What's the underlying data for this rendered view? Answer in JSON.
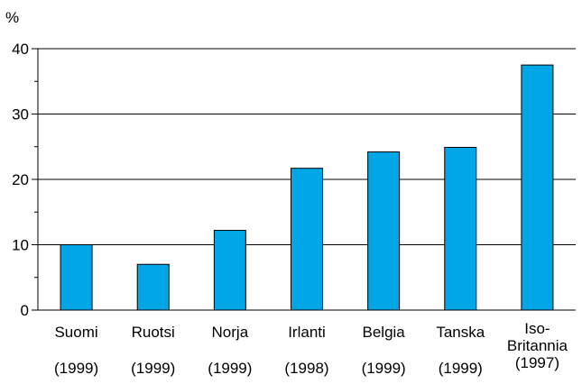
{
  "chart_data": {
    "type": "bar",
    "ylabel": "%",
    "ylim": [
      0,
      40
    ],
    "yticks": [
      0,
      10,
      20,
      30,
      40
    ],
    "categories": [
      "Suomi",
      "Ruotsi",
      "Norja",
      "Irlanti",
      "Belgia",
      "Tanska",
      "Iso-Britannia"
    ],
    "category_lines": [
      [
        "Suomi"
      ],
      [
        "Ruotsi"
      ],
      [
        "Norja"
      ],
      [
        "Irlanti"
      ],
      [
        "Belgia"
      ],
      [
        "Tanska"
      ],
      [
        "Iso-",
        "Britannia"
      ]
    ],
    "years": [
      "(1999)",
      "(1999)",
      "(1999)",
      "(1998)",
      "(1999)",
      "(1999)",
      "(1997)"
    ],
    "values": [
      10,
      7,
      12.2,
      21.7,
      24.2,
      24.9,
      37.5
    ],
    "grid": true,
    "bar_color": "#00a6e6"
  }
}
